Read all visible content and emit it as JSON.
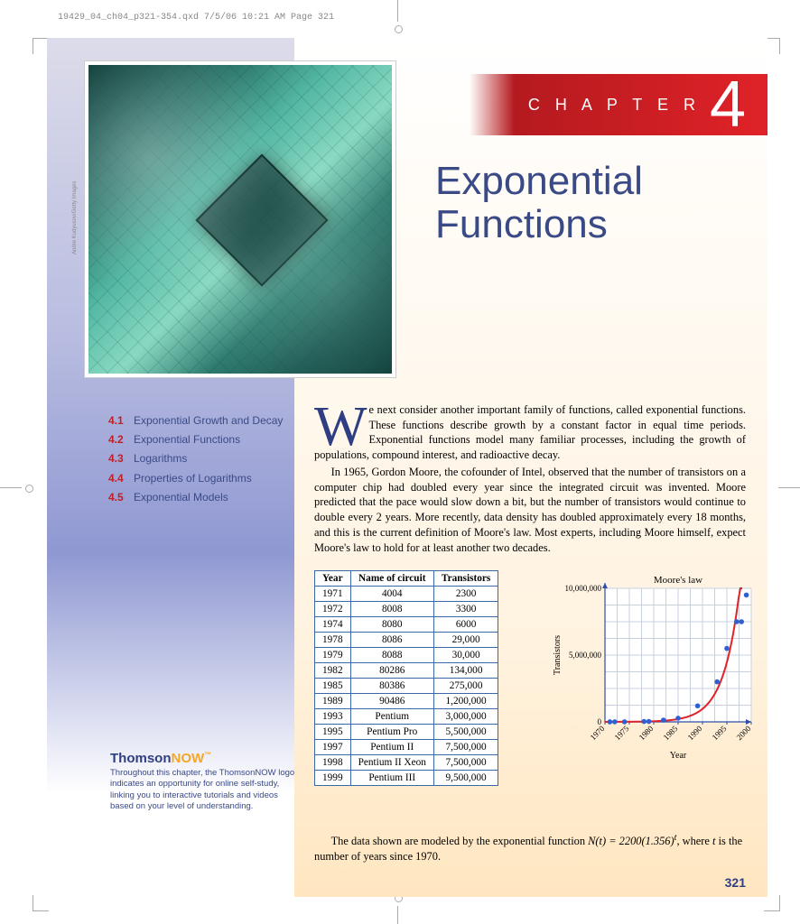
{
  "print_header": "19429_04_ch04_p321-354.qxd  7/5/06  10:21 AM  Page 321",
  "image_credit": "Andre Kudyusov/Getty Images",
  "chapter": {
    "label": "C H A P T E R",
    "number": "4"
  },
  "title_line1": "Exponential",
  "title_line2": "Functions",
  "toc": [
    {
      "num": "4.1",
      "txt": "Exponential Growth and Decay"
    },
    {
      "num": "4.2",
      "txt": "Exponential Functions"
    },
    {
      "num": "4.3",
      "txt": "Logarithms"
    },
    {
      "num": "4.4",
      "txt": "Properties of Logarithms"
    },
    {
      "num": "4.5",
      "txt": "Exponential Models"
    }
  ],
  "dropcap": "W",
  "para1": "e next consider another important family of functions, called exponential functions. These functions describe growth by a constant factor in equal time periods. Exponential functions model many familiar processes, including the growth of populations, compound interest, and radioactive decay.",
  "para2": "In 1965, Gordon Moore, the cofounder of Intel, observed that the number of transistors on a computer chip had doubled every year since the integrated circuit was invented. Moore predicted that the pace would slow down a bit, but the number of transistors would continue to double every 2 years. More recently, data density has doubled approximately every 18 months, and this is the current definition of Moore's law. Most experts, including Moore himself, expect Moore's law to hold for at least another two decades.",
  "table": {
    "columns": [
      "Year",
      "Name of circuit",
      "Transistors"
    ],
    "rows": [
      [
        "1971",
        "4004",
        "2300"
      ],
      [
        "1972",
        "8008",
        "3300"
      ],
      [
        "1974",
        "8080",
        "6000"
      ],
      [
        "1978",
        "8086",
        "29,000"
      ],
      [
        "1979",
        "8088",
        "30,000"
      ],
      [
        "1982",
        "80286",
        "134,000"
      ],
      [
        "1985",
        "80386",
        "275,000"
      ],
      [
        "1989",
        "90486",
        "1,200,000"
      ],
      [
        "1993",
        "Pentium",
        "3,000,000"
      ],
      [
        "1995",
        "Pentium Pro",
        "5,500,000"
      ],
      [
        "1997",
        "Pentium II",
        "7,500,000"
      ],
      [
        "1998",
        "Pentium II Xeon",
        "7,500,000"
      ],
      [
        "1999",
        "Pentium III",
        "9,500,000"
      ]
    ]
  },
  "chart": {
    "type": "scatter-with-curve",
    "title": "Moore's law",
    "xlabel": "Year",
    "ylabel": "Transistors",
    "xlim": [
      1970,
      2000
    ],
    "ylim": [
      0,
      10000000
    ],
    "xticks": [
      1970,
      1975,
      1980,
      1985,
      1990,
      1995,
      2000
    ],
    "yticks": [
      0,
      5000000,
      10000000
    ],
    "ytick_labels": [
      "0",
      "5,000,000",
      "10,000,000"
    ],
    "grid_color": "#c8d0e0",
    "axis_color": "#2f4ea8",
    "point_color": "#2f5fd1",
    "curve_color": "#e02228",
    "background_color": "#ffffff",
    "title_fontsize": 11,
    "label_fontsize": 10,
    "tick_fontsize": 9,
    "point_radius": 2.8,
    "curve_width": 2,
    "points": [
      [
        1971,
        2300
      ],
      [
        1972,
        3300
      ],
      [
        1974,
        6000
      ],
      [
        1978,
        29000
      ],
      [
        1979,
        30000
      ],
      [
        1982,
        134000
      ],
      [
        1985,
        275000
      ],
      [
        1989,
        1200000
      ],
      [
        1993,
        3000000
      ],
      [
        1995,
        5500000
      ],
      [
        1997,
        7500000
      ],
      [
        1998,
        7500000
      ],
      [
        1999,
        9500000
      ]
    ],
    "curve": {
      "a": 2200,
      "b": 1.356,
      "t0": 1970
    }
  },
  "thomson": {
    "brand1": "Thomson",
    "brand2": "NOW",
    "tm": "™",
    "blurb": "Throughout this chapter, the ThomsonNOW logo indicates an opportunity for online self-study, linking you to interactive tutorials and videos based on your level of understanding."
  },
  "closing_pre": "The data shown are modeled by the exponential function ",
  "closing_fn": "N(t) = 2200(1.356)",
  "closing_exp": "t",
  "closing_mid": ", where ",
  "closing_var": "t",
  "closing_post": " is the number of years since 1970.",
  "page_number": "321"
}
